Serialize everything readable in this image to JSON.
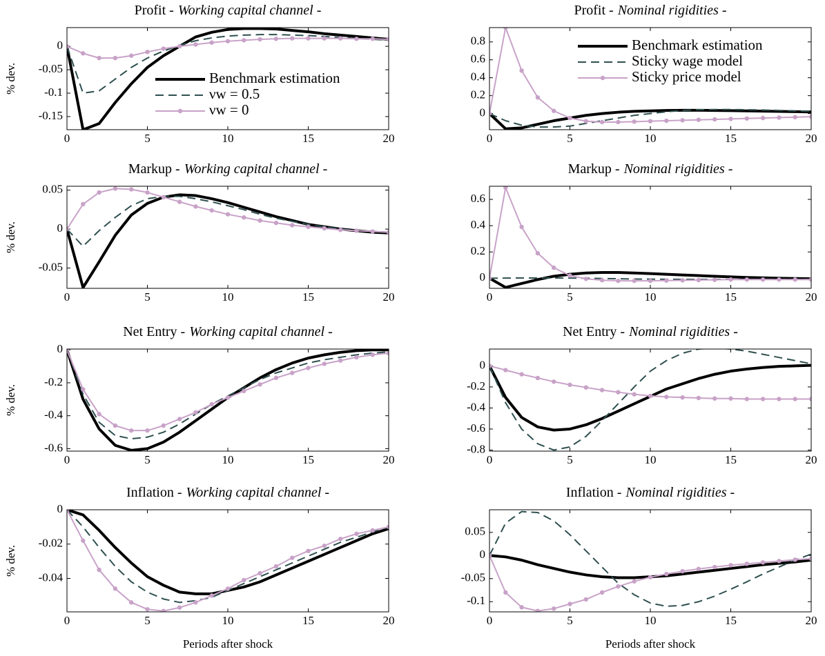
{
  "chart_data": [
    {
      "type": "line",
      "title": "Profit -",
      "subtitle": "Working capital channel -",
      "ylabel": "% dev.",
      "x": [
        0,
        1,
        2,
        3,
        4,
        5,
        6,
        7,
        8,
        9,
        10,
        11,
        12,
        13,
        14,
        15,
        16,
        17,
        18,
        19,
        20
      ],
      "xlim": [
        0,
        20
      ],
      "xticks": [
        0,
        5,
        10,
        15,
        20
      ],
      "ylim": [
        -0.178,
        0.04
      ],
      "yticks": [
        -0.15,
        -0.1,
        -0.05,
        0
      ],
      "legend": "east",
      "series": [
        {
          "name": "Benchmark estimation",
          "color": "#000000",
          "line_style": "solid",
          "values": [
            0,
            -0.178,
            -0.165,
            -0.12,
            -0.08,
            -0.045,
            -0.02,
            0,
            0.02,
            0.03,
            0.036,
            0.038,
            0.038,
            0.037,
            0.034,
            0.031,
            0.027,
            0.024,
            0.021,
            0.018,
            0.015
          ]
        },
        {
          "name": "νw = 0.5",
          "color": "#2f4f4f",
          "line_style": "dashed",
          "values": [
            0,
            -0.1,
            -0.095,
            -0.07,
            -0.045,
            -0.025,
            -0.01,
            0.002,
            0.012,
            0.018,
            0.022,
            0.024,
            0.025,
            0.025,
            0.024,
            0.023,
            0.021,
            0.019,
            0.017,
            0.015,
            0.013
          ]
        },
        {
          "name": "νw = 0",
          "color": "#c8a2c8",
          "line_style": "marker",
          "values": [
            0,
            -0.015,
            -0.025,
            -0.025,
            -0.02,
            -0.012,
            -0.005,
            0,
            0.004,
            0.008,
            0.011,
            0.013,
            0.015,
            0.016,
            0.017,
            0.017,
            0.017,
            0.017,
            0.016,
            0.016,
            0.015
          ]
        }
      ]
    },
    {
      "type": "line",
      "title": "Profit -",
      "subtitle": "Nominal rigidities -",
      "x": [
        0,
        1,
        2,
        3,
        4,
        5,
        6,
        7,
        8,
        9,
        10,
        11,
        12,
        13,
        14,
        15,
        16,
        17,
        18,
        19,
        20
      ],
      "xlim": [
        0,
        20
      ],
      "xticks": [
        0,
        5,
        10,
        15,
        20
      ],
      "ylim": [
        -0.18,
        0.96
      ],
      "yticks": [
        0,
        0.2,
        0.4,
        0.6,
        0.8
      ],
      "legend": "northeast",
      "series": [
        {
          "name": "Benchmark estimation",
          "color": "#000000",
          "line_style": "solid",
          "values": [
            0,
            -0.17,
            -0.16,
            -0.12,
            -0.08,
            -0.05,
            -0.02,
            0,
            0.015,
            0.025,
            0.03,
            0.035,
            0.037,
            0.037,
            0.035,
            0.033,
            0.03,
            0.027,
            0.024,
            0.021,
            0.018
          ]
        },
        {
          "name": "Sticky wage model",
          "color": "#2f4f4f",
          "line_style": "dashed",
          "values": [
            0,
            -0.08,
            -0.13,
            -0.15,
            -0.15,
            -0.14,
            -0.11,
            -0.08,
            -0.05,
            -0.02,
            0,
            0.02,
            0.035,
            0.043,
            0.045,
            0.045,
            0.043,
            0.04,
            0.035,
            0.03,
            0.025
          ]
        },
        {
          "name": "Sticky price model",
          "color": "#c8a2c8",
          "line_style": "marker",
          "values": [
            0,
            0.96,
            0.48,
            0.18,
            0.03,
            -0.05,
            -0.085,
            -0.095,
            -0.095,
            -0.09,
            -0.085,
            -0.08,
            -0.075,
            -0.07,
            -0.065,
            -0.06,
            -0.055,
            -0.05,
            -0.045,
            -0.04,
            -0.035
          ]
        }
      ]
    },
    {
      "type": "line",
      "title": "Markup -",
      "subtitle": "Working capital channel -",
      "ylabel": "% dev.",
      "x": [
        0,
        1,
        2,
        3,
        4,
        5,
        6,
        7,
        8,
        9,
        10,
        11,
        12,
        13,
        14,
        15,
        16,
        17,
        18,
        19,
        20
      ],
      "xlim": [
        0,
        20
      ],
      "xticks": [
        0,
        5,
        10,
        15,
        20
      ],
      "ylim": [
        -0.076,
        0.055
      ],
      "yticks": [
        -0.05,
        0,
        0.05
      ],
      "series": [
        {
          "color": "#000000",
          "line_style": "solid",
          "values": [
            0,
            -0.075,
            -0.042,
            -0.008,
            0.018,
            0.033,
            0.041,
            0.044,
            0.043,
            0.039,
            0.034,
            0.028,
            0.022,
            0.016,
            0.011,
            0.006,
            0.003,
            0,
            -0.002,
            -0.004,
            -0.005
          ]
        },
        {
          "color": "#2f4f4f",
          "line_style": "dashed",
          "values": [
            0,
            -0.022,
            -0.002,
            0.015,
            0.03,
            0.039,
            0.042,
            0.042,
            0.039,
            0.035,
            0.03,
            0.025,
            0.019,
            0.014,
            0.01,
            0.006,
            0.003,
            0,
            -0.002,
            -0.003,
            -0.004
          ]
        },
        {
          "color": "#c8a2c8",
          "line_style": "marker",
          "values": [
            0,
            0.032,
            0.047,
            0.052,
            0.051,
            0.047,
            0.041,
            0.035,
            0.029,
            0.024,
            0.019,
            0.015,
            0.011,
            0.008,
            0.005,
            0.003,
            0.001,
            -0.001,
            -0.002,
            -0.003,
            -0.004
          ]
        }
      ]
    },
    {
      "type": "line",
      "title": "Markup -",
      "subtitle": "Nominal rigidities -",
      "x": [
        0,
        1,
        2,
        3,
        4,
        5,
        6,
        7,
        8,
        9,
        10,
        11,
        12,
        13,
        14,
        15,
        16,
        17,
        18,
        19,
        20
      ],
      "xlim": [
        0,
        20
      ],
      "xticks": [
        0,
        5,
        10,
        15,
        20
      ],
      "ylim": [
        -0.077,
        0.7
      ],
      "yticks": [
        0,
        0.2,
        0.4,
        0.6
      ],
      "series": [
        {
          "color": "#000000",
          "line_style": "solid",
          "values": [
            0,
            -0.07,
            -0.04,
            -0.01,
            0.015,
            0.03,
            0.04,
            0.044,
            0.044,
            0.04,
            0.035,
            0.03,
            0.025,
            0.02,
            0.015,
            0.01,
            0.006,
            0.003,
            0,
            -0.002,
            -0.004
          ]
        },
        {
          "color": "#2f4f4f",
          "line_style": "dashed",
          "values": [
            0,
            0.001,
            0.002,
            0.002,
            0.002,
            0.001,
            0,
            -0.002,
            -0.004,
            -0.006,
            -0.007,
            -0.008,
            -0.009,
            -0.009,
            -0.009,
            -0.009,
            -0.009,
            -0.009,
            -0.009,
            -0.009,
            -0.009
          ]
        },
        {
          "color": "#c8a2c8",
          "line_style": "marker",
          "values": [
            0,
            0.69,
            0.39,
            0.19,
            0.08,
            0.02,
            -0.005,
            -0.015,
            -0.02,
            -0.02,
            -0.02,
            -0.018,
            -0.016,
            -0.014,
            -0.012,
            -0.01,
            -0.01,
            -0.01,
            -0.01,
            -0.01,
            -0.01
          ]
        }
      ]
    },
    {
      "type": "line",
      "title": "Net Entry -",
      "subtitle": "Working capital channel -",
      "ylabel": "% dev.",
      "x": [
        0,
        1,
        2,
        3,
        4,
        5,
        6,
        7,
        8,
        9,
        10,
        11,
        12,
        13,
        14,
        15,
        16,
        17,
        18,
        19,
        20
      ],
      "xlim": [
        0,
        20
      ],
      "xticks": [
        0,
        5,
        10,
        15,
        20
      ],
      "ylim": [
        -0.615,
        0.005
      ],
      "yticks": [
        -0.6,
        -0.4,
        -0.2,
        0
      ],
      "series": [
        {
          "color": "#000000",
          "line_style": "solid",
          "values": [
            0,
            -0.3,
            -0.48,
            -0.58,
            -0.61,
            -0.6,
            -0.56,
            -0.5,
            -0.43,
            -0.36,
            -0.29,
            -0.23,
            -0.17,
            -0.12,
            -0.08,
            -0.05,
            -0.03,
            -0.015,
            -0.005,
            0,
            0
          ]
        },
        {
          "color": "#2f4f4f",
          "line_style": "dashed",
          "values": [
            0,
            -0.27,
            -0.44,
            -0.52,
            -0.54,
            -0.53,
            -0.5,
            -0.45,
            -0.39,
            -0.33,
            -0.28,
            -0.23,
            -0.18,
            -0.14,
            -0.11,
            -0.08,
            -0.06,
            -0.045,
            -0.03,
            -0.02,
            -0.012
          ]
        },
        {
          "color": "#c8a2c8",
          "line_style": "marker",
          "values": [
            0,
            -0.24,
            -0.39,
            -0.46,
            -0.49,
            -0.49,
            -0.46,
            -0.42,
            -0.38,
            -0.33,
            -0.29,
            -0.25,
            -0.21,
            -0.17,
            -0.14,
            -0.11,
            -0.085,
            -0.065,
            -0.045,
            -0.03,
            -0.02
          ]
        }
      ]
    },
    {
      "type": "line",
      "title": "Net Entry -",
      "subtitle": "Nominal rigidities -",
      "x": [
        0,
        1,
        2,
        3,
        4,
        5,
        6,
        7,
        8,
        9,
        10,
        11,
        12,
        13,
        14,
        15,
        16,
        17,
        18,
        19,
        20
      ],
      "xlim": [
        0,
        20
      ],
      "xticks": [
        0,
        5,
        10,
        15,
        20
      ],
      "ylim": [
        -0.81,
        0.16
      ],
      "yticks": [
        -0.8,
        -0.6,
        -0.4,
        -0.2,
        0
      ],
      "series": [
        {
          "color": "#000000",
          "line_style": "solid",
          "values": [
            0,
            -0.3,
            -0.49,
            -0.58,
            -0.61,
            -0.6,
            -0.56,
            -0.5,
            -0.43,
            -0.36,
            -0.29,
            -0.22,
            -0.17,
            -0.12,
            -0.08,
            -0.05,
            -0.03,
            -0.015,
            -0.005,
            0,
            0.005
          ]
        },
        {
          "color": "#2f4f4f",
          "line_style": "dashed",
          "values": [
            0,
            -0.35,
            -0.6,
            -0.74,
            -0.8,
            -0.77,
            -0.67,
            -0.52,
            -0.36,
            -0.2,
            -0.05,
            0.05,
            0.12,
            0.16,
            0.17,
            0.16,
            0.14,
            0.11,
            0.08,
            0.05,
            0.02
          ]
        },
        {
          "color": "#c8a2c8",
          "line_style": "marker",
          "values": [
            0,
            -0.04,
            -0.08,
            -0.115,
            -0.15,
            -0.18,
            -0.205,
            -0.23,
            -0.25,
            -0.27,
            -0.285,
            -0.295,
            -0.3,
            -0.305,
            -0.31,
            -0.31,
            -0.315,
            -0.315,
            -0.315,
            -0.315,
            -0.315
          ]
        }
      ]
    },
    {
      "type": "line",
      "title": "Inflation -",
      "subtitle": "Working capital channel -",
      "ylabel": "% dev.",
      "xlabel": "Periods after shock",
      "x": [
        0,
        1,
        2,
        3,
        4,
        5,
        6,
        7,
        8,
        9,
        10,
        11,
        12,
        13,
        14,
        15,
        16,
        17,
        18,
        19,
        20
      ],
      "xlim": [
        0,
        20
      ],
      "xticks": [
        0,
        5,
        10,
        15,
        20
      ],
      "ylim": [
        -0.0595,
        0
      ],
      "yticks": [
        -0.04,
        -0.02,
        0
      ],
      "series": [
        {
          "color": "#000000",
          "line_style": "solid",
          "values": [
            0,
            -0.003,
            -0.012,
            -0.022,
            -0.031,
            -0.039,
            -0.044,
            -0.048,
            -0.049,
            -0.049,
            -0.047,
            -0.045,
            -0.042,
            -0.038,
            -0.034,
            -0.03,
            -0.026,
            -0.022,
            -0.018,
            -0.014,
            -0.011
          ]
        },
        {
          "color": "#2f4f4f",
          "line_style": "dashed",
          "values": [
            0,
            -0.01,
            -0.022,
            -0.033,
            -0.042,
            -0.048,
            -0.052,
            -0.054,
            -0.053,
            -0.051,
            -0.047,
            -0.043,
            -0.039,
            -0.035,
            -0.031,
            -0.027,
            -0.023,
            -0.019,
            -0.016,
            -0.013,
            -0.01
          ]
        },
        {
          "color": "#c8a2c8",
          "line_style": "marker",
          "values": [
            0,
            -0.018,
            -0.035,
            -0.046,
            -0.054,
            -0.058,
            -0.059,
            -0.057,
            -0.054,
            -0.05,
            -0.046,
            -0.041,
            -0.037,
            -0.033,
            -0.028,
            -0.024,
            -0.021,
            -0.017,
            -0.014,
            -0.012,
            -0.01
          ]
        }
      ]
    },
    {
      "type": "line",
      "title": "Inflation -",
      "subtitle": "Nominal rigidities -",
      "xlabel": "Periods after shock",
      "x": [
        0,
        1,
        2,
        3,
        4,
        5,
        6,
        7,
        8,
        9,
        10,
        11,
        12,
        13,
        14,
        15,
        16,
        17,
        18,
        19,
        20
      ],
      "xlim": [
        0,
        20
      ],
      "xticks": [
        0,
        5,
        10,
        15,
        20
      ],
      "ylim": [
        -0.122,
        0.099
      ],
      "yticks": [
        -0.1,
        -0.05,
        0,
        0.05
      ],
      "series": [
        {
          "color": "#000000",
          "line_style": "solid",
          "values": [
            0,
            -0.003,
            -0.01,
            -0.02,
            -0.028,
            -0.036,
            -0.042,
            -0.046,
            -0.048,
            -0.048,
            -0.046,
            -0.044,
            -0.04,
            -0.036,
            -0.032,
            -0.028,
            -0.024,
            -0.02,
            -0.017,
            -0.014,
            -0.01
          ]
        },
        {
          "color": "#2f4f4f",
          "line_style": "dashed",
          "values": [
            0,
            0.07,
            0.095,
            0.093,
            0.075,
            0.045,
            0.01,
            -0.025,
            -0.06,
            -0.085,
            -0.103,
            -0.11,
            -0.108,
            -0.1,
            -0.088,
            -0.073,
            -0.057,
            -0.04,
            -0.025,
            -0.01,
            0.003
          ]
        },
        {
          "color": "#c8a2c8",
          "line_style": "marker",
          "values": [
            0,
            -0.08,
            -0.112,
            -0.12,
            -0.115,
            -0.105,
            -0.095,
            -0.08,
            -0.067,
            -0.056,
            -0.047,
            -0.04,
            -0.034,
            -0.029,
            -0.025,
            -0.021,
            -0.018,
            -0.015,
            -0.012,
            -0.009,
            -0.007
          ]
        }
      ]
    }
  ]
}
